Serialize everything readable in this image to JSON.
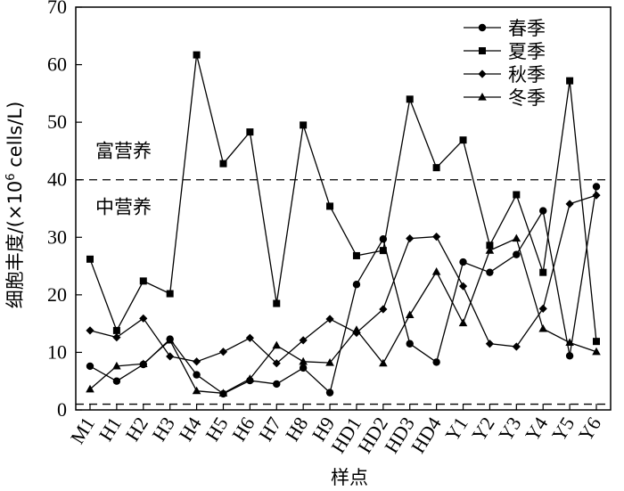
{
  "chart_data": {
    "type": "line",
    "xlabel": "样点",
    "ylabel": "细胞丰度/(×10",
    "ylabel_sup": "6",
    "ylabel_suffix": " cells/L)",
    "ylim": [
      0,
      70
    ],
    "yticks": [
      0,
      10,
      20,
      30,
      40,
      50,
      60,
      70
    ],
    "categories": [
      "M1",
      "H1",
      "H2",
      "H3",
      "H4",
      "H5",
      "H6",
      "H7",
      "H8",
      "H9",
      "HD1",
      "HD2",
      "HD3",
      "HD4",
      "Y1",
      "Y2",
      "Y3",
      "Y4",
      "Y5",
      "Y6"
    ],
    "series": [
      {
        "name": "春季",
        "marker": "circle",
        "values": [
          7.6,
          5.0,
          7.9,
          12.3,
          6.1,
          2.8,
          5.1,
          4.5,
          7.3,
          3.0,
          21.8,
          29.7,
          11.5,
          8.3,
          25.7,
          23.9,
          27.0,
          34.6,
          9.4,
          38.8
        ]
      },
      {
        "name": "夏季",
        "marker": "square",
        "values": [
          26.2,
          13.8,
          22.4,
          20.2,
          61.7,
          42.8,
          48.3,
          18.5,
          49.5,
          35.4,
          26.8,
          27.7,
          54.0,
          42.1,
          46.9,
          28.6,
          37.4,
          23.9,
          57.2,
          11.9
        ]
      },
      {
        "name": "秋季",
        "marker": "diamond",
        "values": [
          13.8,
          12.6,
          15.9,
          9.3,
          8.4,
          10.1,
          12.5,
          8.1,
          12.1,
          15.8,
          13.4,
          17.5,
          29.8,
          30.1,
          21.5,
          11.5,
          11.0,
          17.6,
          35.8,
          37.3
        ]
      },
      {
        "name": "冬季",
        "marker": "triangle",
        "values": [
          3.6,
          7.6,
          8.0,
          12.1,
          3.3,
          2.9,
          5.4,
          11.2,
          8.4,
          8.2,
          13.9,
          8.1,
          16.5,
          24.0,
          15.1,
          27.7,
          29.8,
          14.1,
          11.7,
          10.1
        ]
      }
    ],
    "reference_lines": [
      {
        "y": 40,
        "label_above": "富营养",
        "label_below": "中营养"
      },
      {
        "y": 1,
        "label_above": "",
        "label_below": ""
      }
    ],
    "legend_position": "top-right",
    "grid": false
  }
}
